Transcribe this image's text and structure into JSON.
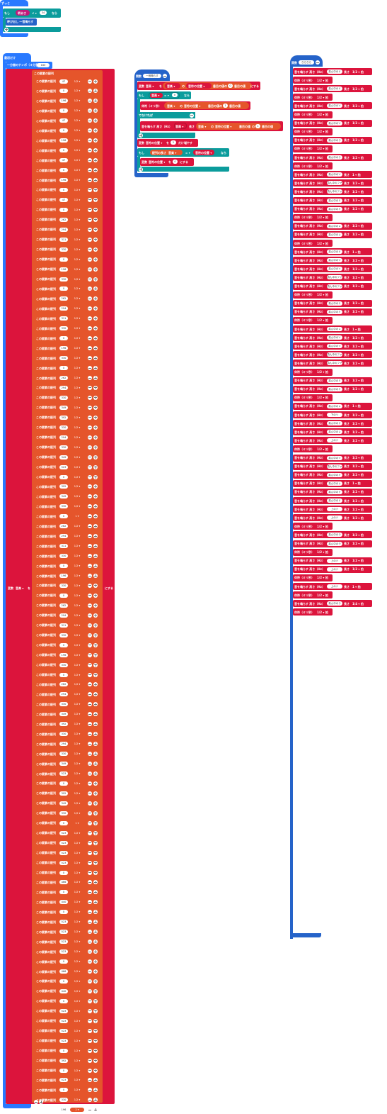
{
  "colors": {
    "event_blue": "#2979ff",
    "logic_teal": "#0b9c9c",
    "variable_red": "#dc143c",
    "list_orange": "#e5552b",
    "text_magenta": "#c2187a",
    "white": "#ffffff"
  },
  "forever": {
    "title": "ずっと",
    "if_label": "もし",
    "cond_left": "明るさ",
    "cond_op": "< ▾",
    "cond_right": "34",
    "then_label": "なら",
    "call_label": "呼び出し 一音鳴らす"
  },
  "on_start": {
    "title": "最初だけ",
    "tempo_label": "一分間のテンポ（４分音符）",
    "tempo_value": "160",
    "var_set_label": "変数",
    "var_name": "音楽 ▾",
    "set_to_label": "を",
    "create_list_label": "この要素の配列",
    "suffix_label": "にする",
    "rows": [
      {
        "note": "47",
        "dur": "1/2 ▾"
      },
      {
        "note": "0",
        "dur": "1/2 ▾"
      },
      {
        "note": "196",
        "dur": "1/2 ▾"
      },
      {
        "note": "0",
        "dur": "1/2 ▾"
      },
      {
        "note": "47",
        "dur": "1/2 ▾"
      },
      {
        "note": "0",
        "dur": "1/2 ▾"
      },
      {
        "note": "196",
        "dur": "1/2 ▾"
      },
      {
        "note": "0",
        "dur": "1/2 ▾"
      },
      {
        "note": "47",
        "dur": "1/2 ▾"
      },
      {
        "note": "0",
        "dur": "1/2 ▾"
      },
      {
        "note": "196",
        "dur": "1/2 ▾"
      },
      {
        "note": "0",
        "dur": "1/2 ▾"
      },
      {
        "note": "47",
        "dur": "1/2 ▾"
      },
      {
        "note": "0",
        "dur": "1/2 ▾"
      },
      {
        "note": "262",
        "dur": "1/2 ▾"
      },
      {
        "note": "294",
        "dur": "1/2 ▾"
      },
      {
        "note": "311",
        "dur": "1/2 ▾"
      },
      {
        "note": "330",
        "dur": "1/2 ▾"
      },
      {
        "note": "0",
        "dur": "1/2 ▾"
      },
      {
        "note": "196",
        "dur": "1/2 ▾"
      },
      {
        "note": "330",
        "dur": "1/2 ▾"
      },
      {
        "note": "0",
        "dur": "1/2 ▾"
      },
      {
        "note": "262",
        "dur": "1/2 ▾"
      },
      {
        "note": "294",
        "dur": "1/2 ▾"
      },
      {
        "note": "311",
        "dur": "1/2 ▾"
      },
      {
        "note": "330",
        "dur": "1/2 ▾"
      },
      {
        "note": "0",
        "dur": "1/2 ▾"
      },
      {
        "note": "196",
        "dur": "1/2 ▾"
      },
      {
        "note": "330",
        "dur": "1/2 ▾"
      },
      {
        "note": "0",
        "dur": "1/2 ▾"
      },
      {
        "note": "262",
        "dur": "1/2 ▾"
      },
      {
        "note": "294",
        "dur": "1/2 ▾"
      },
      {
        "note": "330",
        "dur": "1/2 ▾"
      },
      {
        "note": "349",
        "dur": "1/2 ▾"
      },
      {
        "note": "392",
        "dur": "1/2 ▾"
      },
      {
        "note": "330",
        "dur": "1/2 ▾"
      },
      {
        "note": "294",
        "dur": "1/2 ▾"
      },
      {
        "note": "330",
        "dur": "1/2 ▾"
      },
      {
        "note": "349",
        "dur": "1/2 ▾"
      },
      {
        "note": "523",
        "dur": "1/2 ▾"
      },
      {
        "note": "0",
        "dur": "1/2 ▾"
      },
      {
        "note": "392",
        "dur": "1/2 ▾"
      },
      {
        "note": "349",
        "dur": "1/2 ▾"
      },
      {
        "note": "330",
        "dur": "1/2 ▾"
      },
      {
        "note": "0",
        "dur": "1 ▾"
      },
      {
        "note": "262",
        "dur": "1/2 ▾"
      },
      {
        "note": "294",
        "dur": "1/2 ▾"
      },
      {
        "note": "311",
        "dur": "1/2 ▾"
      },
      {
        "note": "330",
        "dur": "1/2 ▾"
      },
      {
        "note": "0",
        "dur": "1/2 ▾"
      },
      {
        "note": "196",
        "dur": "1/2 ▾"
      },
      {
        "note": "330",
        "dur": "1/2 ▾"
      },
      {
        "note": "0",
        "dur": "1/2 ▾"
      },
      {
        "note": "262",
        "dur": "1/2 ▾"
      },
      {
        "note": "294",
        "dur": "1/2 ▾"
      },
      {
        "note": "311",
        "dur": "1/2 ▾"
      },
      {
        "note": "330",
        "dur": "1/2 ▾"
      },
      {
        "note": "0",
        "dur": "1/2 ▾"
      },
      {
        "note": "196",
        "dur": "1/2 ▾"
      },
      {
        "note": "330",
        "dur": "1/2 ▾"
      },
      {
        "note": "0",
        "dur": "1/2 ▾"
      },
      {
        "note": "262",
        "dur": "1/2 ▾"
      },
      {
        "note": "294",
        "dur": "1/2 ▾"
      },
      {
        "note": "330",
        "dur": "1/2 ▾"
      },
      {
        "note": "349",
        "dur": "1/2 ▾"
      },
      {
        "note": "392",
        "dur": "1/2 ▾"
      },
      {
        "note": "330",
        "dur": "1/2 ▾"
      },
      {
        "note": "294",
        "dur": "1/2 ▾"
      },
      {
        "note": "330",
        "dur": "1/2 ▾"
      },
      {
        "note": "349",
        "dur": "1/2 ▾"
      },
      {
        "note": "523",
        "dur": "1/2 ▾"
      },
      {
        "note": "0",
        "dur": "1/2 ▾"
      },
      {
        "note": "392",
        "dur": "1/2 ▾"
      },
      {
        "note": "349",
        "dur": "1/2 ▾"
      },
      {
        "note": "330",
        "dur": "1/2 ▾"
      },
      {
        "note": "0",
        "dur": "1 ▾"
      },
      {
        "note": "523",
        "dur": "1/2 ▾"
      },
      {
        "note": "523",
        "dur": "1/2 ▾"
      },
      {
        "note": "523",
        "dur": "1/2 ▾"
      },
      {
        "note": "523",
        "dur": "1/2 ▾"
      },
      {
        "note": "0",
        "dur": "1/2 ▾"
      },
      {
        "note": "466",
        "dur": "1/2 ▾"
      },
      {
        "note": "0",
        "dur": "1/2 ▾"
      },
      {
        "note": "440",
        "dur": "1/2 ▾"
      },
      {
        "note": "0",
        "dur": "1/2 ▾"
      },
      {
        "note": "523",
        "dur": "1/2 ▾"
      },
      {
        "note": "523",
        "dur": "1/2 ▾"
      },
      {
        "note": "523",
        "dur": "1/2 ▾"
      },
      {
        "note": "523",
        "dur": "1/2 ▾"
      },
      {
        "note": "0",
        "dur": "1/2 ▾"
      },
      {
        "note": "466",
        "dur": "1/2 ▾"
      },
      {
        "note": "0",
        "dur": "1/2 ▾"
      },
      {
        "note": "440",
        "dur": "1/2 ▾"
      },
      {
        "note": "0",
        "dur": "1/2 ▾"
      },
      {
        "note": "523",
        "dur": "1/2 ▾"
      },
      {
        "note": "523",
        "dur": "1/2 ▾"
      },
      {
        "note": "523",
        "dur": "1/2 ▾"
      },
      {
        "note": "523",
        "dur": "1/2 ▾"
      },
      {
        "note": "0",
        "dur": "1/2 ▾"
      },
      {
        "note": "392",
        "dur": "1/2 ▾"
      },
      {
        "note": "0",
        "dur": "1/2 ▾"
      },
      {
        "note": "523",
        "dur": "1/2 ▾"
      },
      {
        "note": "0",
        "dur": "1/2 ▾"
      },
      {
        "note": "330",
        "dur": "1/2 ▾"
      },
      {
        "note": "196",
        "dur": "2 ▾"
      }
    ]
  },
  "function_block": {
    "title_label": "関数",
    "name": "一音鳴らす",
    "line1": {
      "var_label": "変数",
      "var": "音高 ▾",
      "to": "を",
      "list": "音楽 ▾",
      "of": "の",
      "index_var": "音符の位置 ▾",
      "text_mid": "番目の値",
      "plus_label": "の",
      "num": "0",
      "suffix": "番目の値",
      "end": "にする"
    },
    "if_label": "もし",
    "if_var": "音高 ▾",
    "if_op": "= ▾",
    "if_val": "0",
    "then_label": "なら",
    "rest_label": "休符（ミリ秒）",
    "rest_list": "音楽 ▾",
    "rest_of": "の",
    "rest_index": "音符の位置 ▾",
    "rest_mid": "番目の値",
    "rest_plus": "の",
    "rest_num": "1",
    "rest_suffix": "番目の値",
    "else_label": "でなければ",
    "play_label": "音を鳴らす 高さ（Hz）",
    "play_var": "音高 ▾",
    "play_len_label": "長さ",
    "play_list": "音楽 ▾",
    "play_of": "の",
    "play_index": "音符の位置 ▾",
    "play_mid": "番目の値",
    "play_plus": "の",
    "play_num": "1",
    "play_suffix": "番目の値",
    "change_label": "変数",
    "change_var": "音符の位置 ▾",
    "change_by": "を",
    "change_num": "2",
    "change_suffix": "だけ増やす",
    "if2_label": "もし",
    "if2_left": "配列の長さ",
    "if2_list": "音楽 ▾",
    "if2_op": "= ▾",
    "if2_right": "音符の位置 ▾",
    "if2_then": "なら",
    "set2_label": "変数",
    "set2_var": "音符の位置 ▾",
    "set2_to": "を",
    "set2_num": "0",
    "set2_suffix": "にする"
  },
  "melody_function": {
    "title_label": "関数",
    "name": "きらきら",
    "play_prefix": "音を鳴らす 高さ（Hz）",
    "rest_prefix": "休符（ミリ秒）",
    "len_label": "長さ",
    "lines": [
      {
        "t": "p",
        "n": "真ん中のド",
        "d": "1/2 ▾ 拍"
      },
      {
        "t": "r",
        "d": "1/2 ▾ 拍"
      },
      {
        "t": "p",
        "n": "真ん中のド",
        "d": "1/2 ▾ 拍"
      },
      {
        "t": "r",
        "d": "1/2 ▾ 拍"
      },
      {
        "t": "p",
        "n": "真ん中のソ",
        "d": "1/2 ▾ 拍"
      },
      {
        "t": "r",
        "d": "1/2 ▾ 拍"
      },
      {
        "t": "p",
        "n": "真ん中のソ",
        "d": "1/2 ▾ 拍"
      },
      {
        "t": "r",
        "d": "1/2 ▾ 拍"
      },
      {
        "t": "p",
        "n": "真ん中のラ",
        "d": "1/2 ▾ 拍"
      },
      {
        "t": "r",
        "d": "1/2 ▾ 拍"
      },
      {
        "t": "p",
        "n": "真ん中のラ",
        "d": "1/2 ▾ 拍"
      },
      {
        "t": "r",
        "d": "1/2 ▾ 拍"
      },
      {
        "t": "p",
        "n": "真ん中のソ",
        "d": "1 ▾ 拍"
      },
      {
        "t": "p",
        "n": "真ん中のファ",
        "d": "1/2 ▾ 拍"
      },
      {
        "t": "p",
        "n": "真ん中のファ",
        "d": "1/2 ▾ 拍"
      },
      {
        "t": "p",
        "n": "真ん中のミ",
        "d": "1/2 ▾ 拍"
      },
      {
        "t": "p",
        "n": "真ん中のミ",
        "d": "1/2 ▾ 拍"
      },
      {
        "t": "r",
        "d": "1/2 ▾ 拍"
      },
      {
        "t": "p",
        "n": "真ん中のレ",
        "d": "1/2 ▾ 拍"
      },
      {
        "t": "p",
        "n": "真ん中のレ",
        "d": "1/2 ▾ 拍"
      },
      {
        "t": "r",
        "d": "1/2 ▾ 拍"
      },
      {
        "t": "p",
        "n": "真ん中のド",
        "d": "1 ▾ 拍"
      },
      {
        "t": "p",
        "n": "真ん中のソ",
        "d": "1/2 ▾ 拍"
      },
      {
        "t": "p",
        "n": "真ん中のソ",
        "d": "1/2 ▾ 拍"
      },
      {
        "t": "p",
        "n": "真ん中のファ",
        "d": "1/2 ▾ 拍"
      },
      {
        "t": "p",
        "n": "真ん中のファ",
        "d": "1/2 ▾ 拍"
      },
      {
        "t": "r",
        "d": "1/2 ▾ 拍"
      },
      {
        "t": "p",
        "n": "真ん中のミ",
        "d": "1/2 ▾ 拍"
      },
      {
        "t": "p",
        "n": "真ん中のミ",
        "d": "1/2 ▾ 拍"
      },
      {
        "t": "r",
        "d": "1/2 ▾ 拍"
      },
      {
        "t": "p",
        "n": "真ん中のレ",
        "d": "1 ▾ 拍"
      },
      {
        "t": "p",
        "n": "真ん中のソ",
        "d": "1/2 ▾ 拍"
      },
      {
        "t": "p",
        "n": "真ん中のソ",
        "d": "1/2 ▾ 拍"
      },
      {
        "t": "p",
        "n": "真ん中のファ",
        "d": "1/2 ▾ 拍"
      },
      {
        "t": "p",
        "n": "真ん中のファ",
        "d": "1/2 ▾ 拍"
      },
      {
        "t": "r",
        "d": "1/2 ▾ 拍"
      },
      {
        "t": "p",
        "n": "真ん中のミ",
        "d": "1/2 ▾ 拍"
      },
      {
        "t": "p",
        "n": "真ん中のミ",
        "d": "1/2 ▾ 拍"
      },
      {
        "t": "r",
        "d": "1/2 ▾ 拍"
      },
      {
        "t": "p",
        "n": "真ん中のレ",
        "d": "1 ▾ 拍"
      },
      {
        "t": "p",
        "n": "下のソ",
        "d": "1/2 ▾ 拍"
      },
      {
        "t": "p",
        "n": "真ん中のド",
        "d": "1/2 ▾ 拍"
      },
      {
        "t": "p",
        "n": "真ん中のレ",
        "d": "1/2 ▾ 拍"
      },
      {
        "t": "p",
        "n": "上のド",
        "d": "1/2 ▾ 拍"
      },
      {
        "t": "r",
        "d": "1/2 ▾ 拍"
      },
      {
        "t": "p",
        "n": "真ん中のソ",
        "d": "1/2 ▾ 拍"
      },
      {
        "t": "p",
        "n": "真ん中のファ",
        "d": "1/2 ▾ 拍"
      },
      {
        "t": "p",
        "n": "真ん中のミ",
        "d": "1/2 ▾ 拍"
      },
      {
        "t": "p",
        "n": "真ん中のレ",
        "d": "1 ▾ 拍"
      },
      {
        "t": "p",
        "n": "真ん中のド",
        "d": "1/2 ▾ 拍"
      },
      {
        "t": "p",
        "n": "真ん中のド",
        "d": "1/2 ▾ 拍"
      },
      {
        "t": "p",
        "n": "上のド",
        "d": "1/2 ▾ 拍"
      },
      {
        "t": "p",
        "n": "上のド",
        "d": "1/2 ▾ 拍"
      },
      {
        "t": "r",
        "d": "1/2 ▾ 拍"
      },
      {
        "t": "p",
        "n": "真ん中のラ",
        "d": "1/2 ▾ 拍"
      },
      {
        "t": "p",
        "n": "真ん中のラ",
        "d": "1/2 ▾ 拍"
      },
      {
        "t": "r",
        "d": "1/2 ▾ 拍"
      },
      {
        "t": "p",
        "n": "上のド",
        "d": "1/2 ▾ 拍"
      },
      {
        "t": "p",
        "n": "上のド",
        "d": "1/2 ▾ 拍"
      },
      {
        "t": "r",
        "d": "1/2 ▾ 拍"
      },
      {
        "t": "p",
        "n": "上のド",
        "d": "1 ▾ 拍"
      },
      {
        "t": "r",
        "d": "1/2 ▾ 拍"
      },
      {
        "t": "p",
        "n": "真ん中のラ",
        "d": "1/4 ▾ 拍"
      },
      {
        "t": "r",
        "d": "1/2 ▾ 拍"
      }
    ]
  }
}
